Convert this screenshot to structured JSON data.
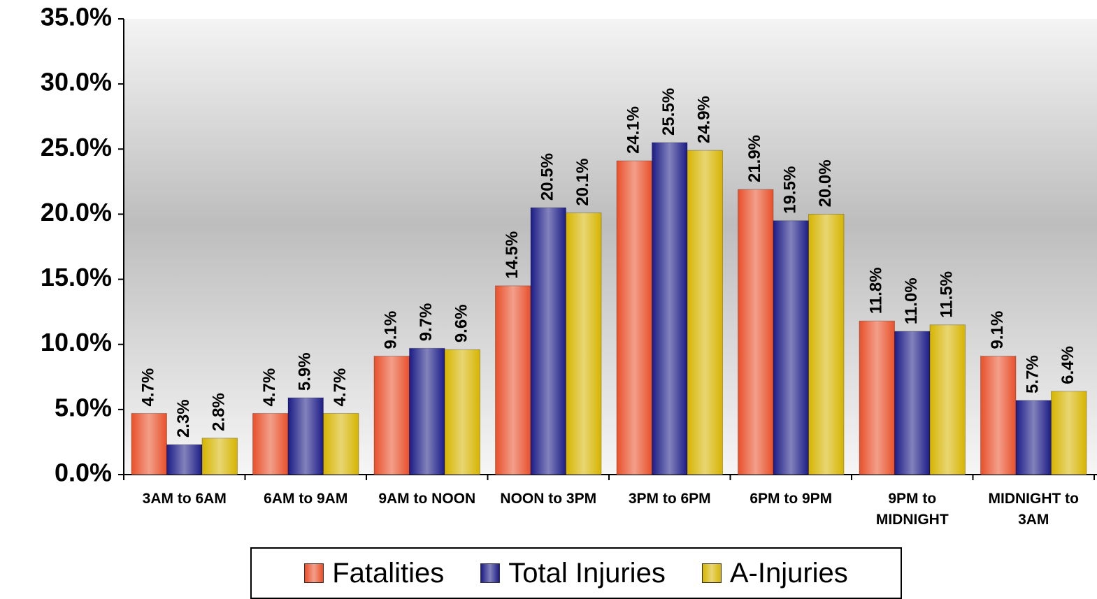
{
  "chart_data": {
    "type": "bar",
    "categories": [
      "3AM to 6AM",
      "6AM to 9AM",
      "9AM to NOON",
      "NOON to 3PM",
      "3PM to 6PM",
      "6PM to 9PM",
      "9PM to MIDNIGHT",
      "MIDNIGHT to 3AM"
    ],
    "series": [
      {
        "name": "Fatalities",
        "color": "#e8502a",
        "values": [
          4.7,
          4.7,
          9.1,
          14.5,
          24.1,
          21.9,
          11.8,
          9.1
        ],
        "value_labels": [
          "4.7%",
          "4.7%",
          "9.1%",
          "14.5%",
          "24.1%",
          "21.9%",
          "11.8%",
          "9.1%"
        ]
      },
      {
        "name": "Total Injuries",
        "color": "#1c1c86",
        "values": [
          2.3,
          5.9,
          9.7,
          20.5,
          25.5,
          19.5,
          11.0,
          5.7
        ],
        "value_labels": [
          "2.3%",
          "5.9%",
          "9.7%",
          "20.5%",
          "25.5%",
          "19.5%",
          "11.0%",
          "5.7%"
        ]
      },
      {
        "name": "A-Injuries",
        "color": "#d6b400",
        "values": [
          2.8,
          4.7,
          9.6,
          20.1,
          24.9,
          20.0,
          11.5,
          6.4
        ],
        "value_labels": [
          "2.8%",
          "4.7%",
          "9.6%",
          "20.1%",
          "24.9%",
          "20.0%",
          "11.5%",
          "6.4%"
        ]
      }
    ],
    "ylim": [
      0,
      35
    ],
    "yticks": [
      {
        "value": 0,
        "label": "0.0%"
      },
      {
        "value": 5,
        "label": "5.0%"
      },
      {
        "value": 10,
        "label": "10.0%"
      },
      {
        "value": 15,
        "label": "15.0%"
      },
      {
        "value": 20,
        "label": "20.0%"
      },
      {
        "value": 25,
        "label": "25.0%"
      },
      {
        "value": 30,
        "label": "30.0%"
      },
      {
        "value": 35,
        "label": "35.0%"
      }
    ],
    "grid": false,
    "legend": "bottom"
  }
}
